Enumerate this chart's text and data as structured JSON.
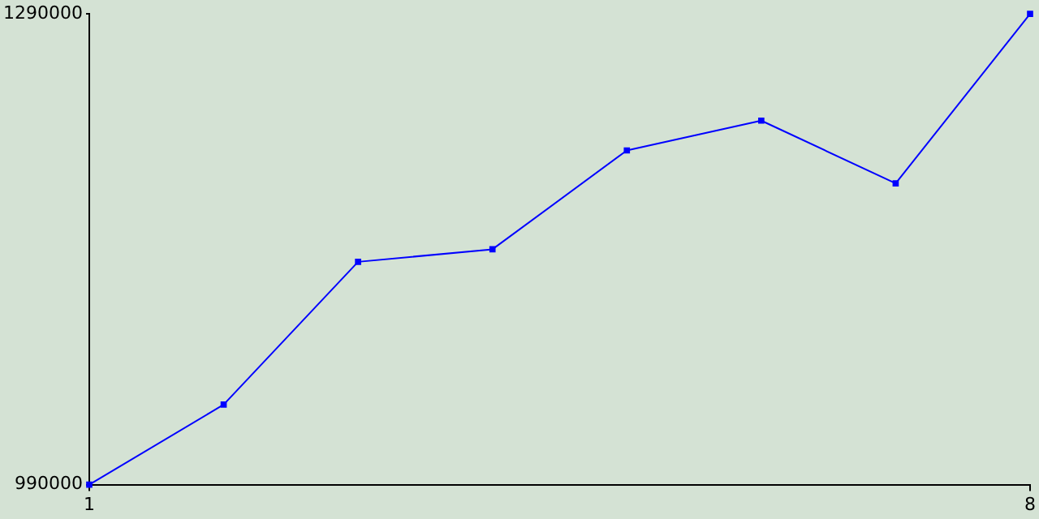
{
  "chart_data": {
    "type": "line",
    "x": [
      1,
      2,
      3,
      4,
      5,
      6,
      7,
      8
    ],
    "values": [
      990000,
      1041000,
      1132000,
      1140000,
      1203000,
      1222000,
      1182000,
      1290000
    ],
    "color": "#0000ff",
    "marker": "square",
    "xlim": [
      1,
      8
    ],
    "xticks": [
      1,
      8
    ],
    "ylim": [
      990000,
      1290000
    ],
    "yticks": [
      990000,
      1290000
    ]
  }
}
